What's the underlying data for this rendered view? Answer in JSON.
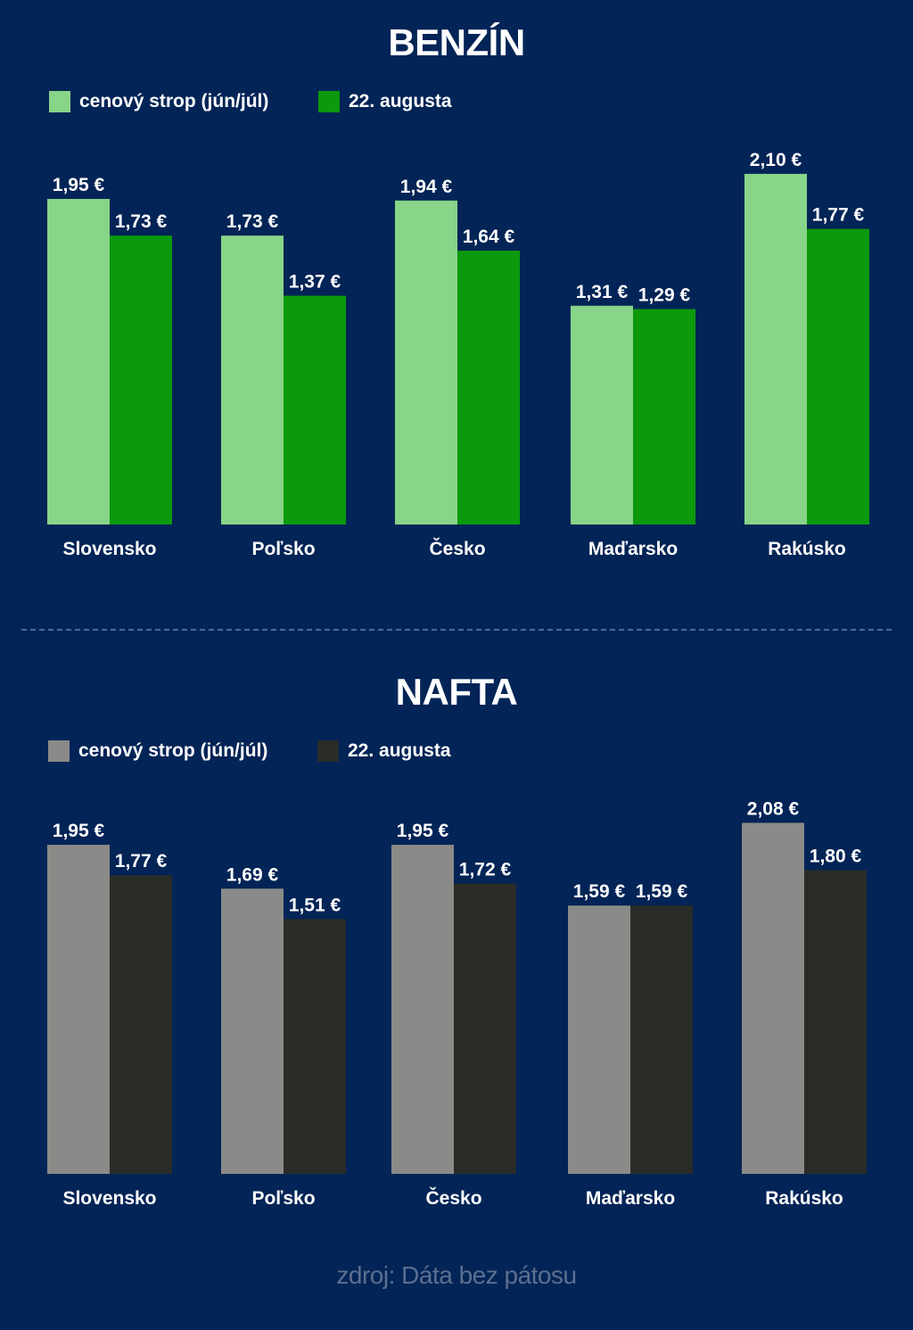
{
  "chart_data": [
    {
      "type": "bar",
      "title": "BENZÍN",
      "categories": [
        "Slovensko",
        "Poľsko",
        "Česko",
        "Maďarsko",
        "Rakúsko"
      ],
      "series": [
        {
          "name": "cenový strop (jún/júl)",
          "color": "#88d488",
          "values": [
            1.95,
            1.73,
            1.94,
            1.31,
            2.1
          ],
          "labels": [
            "1,95 €",
            "1,73 €",
            "1,94 €",
            "1,31 €",
            "2,10 €"
          ]
        },
        {
          "name": "22. augusta",
          "color": "#0c990c",
          "values": [
            1.73,
            1.37,
            1.64,
            1.29,
            1.77
          ],
          "labels": [
            "1,73 €",
            "1,37 €",
            "1,64 €",
            "1,29 €",
            "1,77 €"
          ]
        }
      ],
      "xlabel": "",
      "ylabel": "",
      "ylim": [
        0,
        2.2
      ],
      "grid": false,
      "legend": "top-left",
      "unit": "€"
    },
    {
      "type": "bar",
      "title": "NAFTA",
      "categories": [
        "Slovensko",
        "Poľsko",
        "Česko",
        "Maďarsko",
        "Rakúsko"
      ],
      "series": [
        {
          "name": "cenový strop (jún/júl)",
          "color": "#8a8b88",
          "values": [
            1.95,
            1.69,
            1.95,
            1.59,
            2.08
          ],
          "labels": [
            "1,95 €",
            "1,69 €",
            "1,95 €",
            "1,59 €",
            "2,08 €"
          ]
        },
        {
          "name": "22. augusta",
          "color": "#2a2c28",
          "values": [
            1.77,
            1.51,
            1.72,
            1.59,
            1.8
          ],
          "labels": [
            "1,77 €",
            "1,51 €",
            "1,72 €",
            "1,59 €",
            "1,80 €"
          ]
        }
      ],
      "xlabel": "",
      "ylabel": "",
      "ylim": [
        0,
        2.2
      ],
      "grid": false,
      "legend": "top-left",
      "unit": "€"
    }
  ],
  "source": "zdroj: Dáta bez pátosu",
  "colors": {
    "background": "#022456",
    "text": "#ffffff",
    "source_text": "#5c6f8f"
  }
}
